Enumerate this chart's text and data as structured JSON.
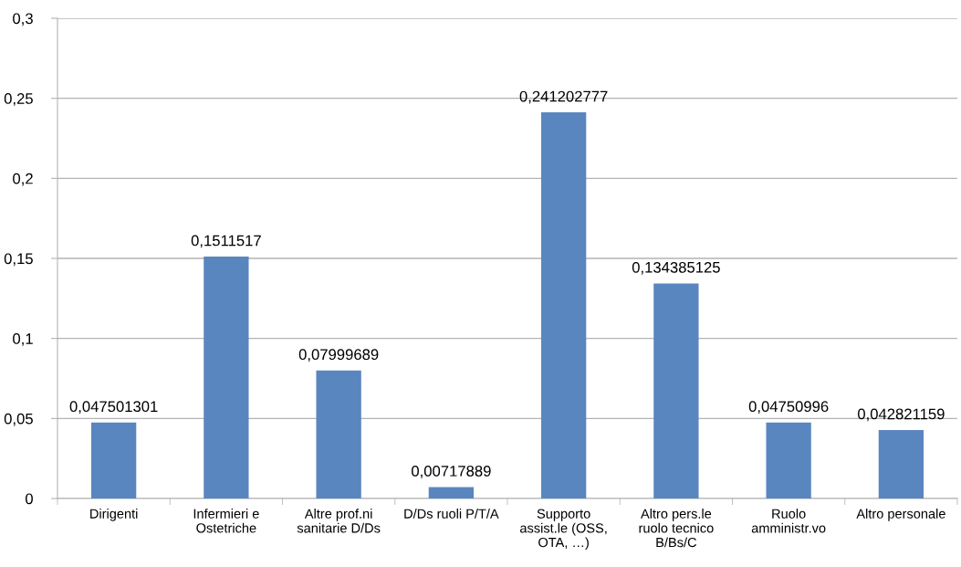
{
  "chart_data": {
    "type": "bar",
    "categories": [
      "Dirigenti",
      "Infermieri e\nOstetriche",
      "Altre prof.ni\nsanitarie D/Ds",
      "D/Ds ruoli P/T/A",
      "Supporto\nassist.le (OSS,\nOTA, …)",
      "Altro pers.le\nruolo tecnico\nB/Bs/C",
      "Ruolo\namministr.vo",
      "Altro personale"
    ],
    "values": [
      0.047501301,
      0.1511517,
      0.07999689,
      0.00717889,
      0.241202777,
      0.134385125,
      0.04750996,
      0.042821159
    ],
    "value_labels": [
      "0,047501301",
      "0,1511517",
      "0,07999689",
      "0,00717889",
      "0,241202777",
      "0,134385125",
      "0,04750996",
      "0,042821159"
    ],
    "color": "#5a86bf",
    "ylim": [
      0,
      0.3
    ],
    "yticks": [
      0,
      {
        "value": 0.05,
        "label": "0,05"
      },
      {
        "value": 0.1,
        "label": "0,1"
      },
      {
        "value": 0.15,
        "label": "0,15"
      },
      {
        "value": 0.2,
        "label": "0,2"
      },
      {
        "value": 0.25,
        "label": "0,25"
      },
      {
        "value": 0.3,
        "label": "0,3"
      }
    ],
    "grid": "y"
  }
}
